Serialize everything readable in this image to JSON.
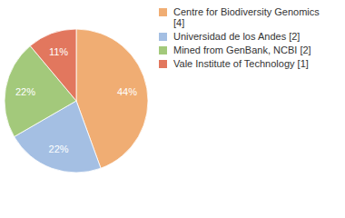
{
  "chart_data": {
    "type": "pie",
    "categories": [
      "Centre for Biodiversity Genomics [4]",
      "Universidad de los Andes [2]",
      "Mined from GenBank, NCBI [2]",
      "Vale Institute of Technology [1]"
    ],
    "values": [
      44,
      22,
      22,
      11
    ],
    "value_labels": [
      "44%",
      "22%",
      "22%",
      "11%"
    ],
    "colors": [
      "#f0ad73",
      "#a4bfe3",
      "#a3c97b",
      "#e2775e"
    ],
    "data_labels": true,
    "legend": "upper right"
  }
}
